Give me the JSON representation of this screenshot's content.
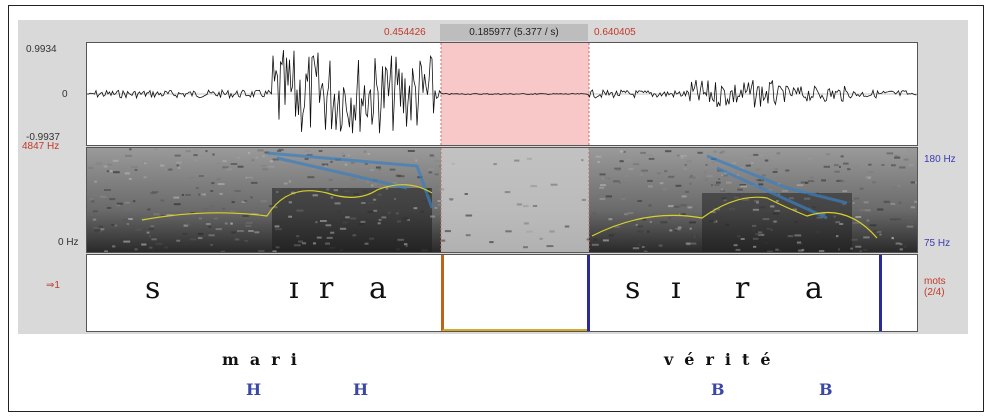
{
  "selection": {
    "start": "0.454426",
    "duration": "0.185977 (5.377 / s)",
    "end": "0.640405"
  },
  "waveform": {
    "max_label": "0.9934",
    "zero_label": "0",
    "min_label": "-0.9937"
  },
  "spectrogram": {
    "max_freq": "4847 Hz",
    "min_freq": "0 Hz",
    "pitch_max": "180 Hz",
    "pitch_min": "75 Hz"
  },
  "tier": {
    "number": "⇒1",
    "name": "mots\n(2/4)",
    "segments_left": [
      "s",
      "ɪ",
      "r",
      "a"
    ],
    "segments_right": [
      "s",
      "ɪ",
      "r",
      "a"
    ]
  },
  "annotations": {
    "word_left": "mari",
    "word_right": "vérité",
    "tones_left": [
      "H",
      "H"
    ],
    "tones_right": [
      "B",
      "B"
    ]
  },
  "colors": {
    "selection": "#f8c8c8",
    "pitch": "#d8d02a",
    "formant": "#3a7fc0",
    "boundary_blue": "#2a2a9a",
    "boundary_orange": "#c0621a"
  }
}
